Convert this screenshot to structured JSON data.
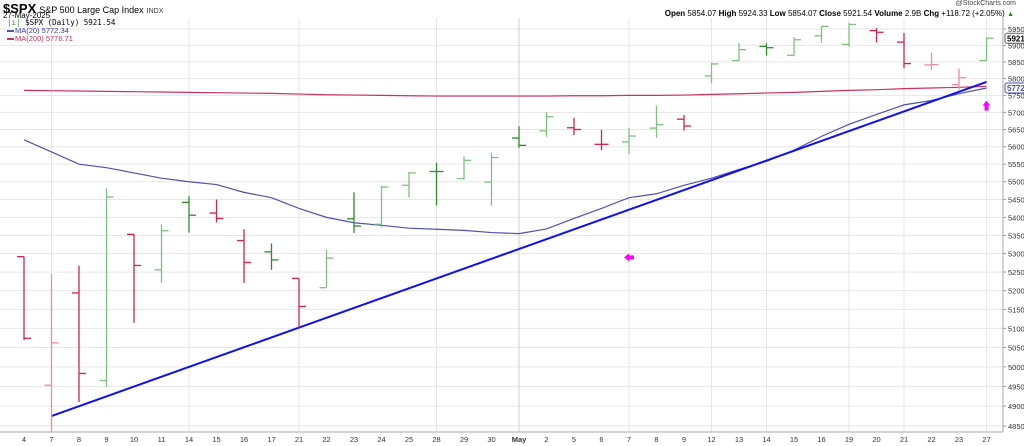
{
  "header": {
    "symbol": "$SPX",
    "name": "S&P 500 Large Cap Index",
    "exchange": "INDX",
    "date": "27-May-2025",
    "credit": "@StockCharts.com",
    "open_label": "Open",
    "open": "5854.07",
    "high_label": "High",
    "high": "5924.33",
    "low_label": "Low",
    "low": "5854.07",
    "close_label": "Close",
    "close": "5921.54",
    "volume_label": "Volume",
    "volume": "2.9B",
    "chg_label": "Chg",
    "chg": "+118.72 (+2.05%)",
    "chg_icon": "triangle-up-icon"
  },
  "legend": {
    "main": "$SPX (Daily) 5921.54",
    "ma20": "MA(20) 5772.34",
    "ma200": "MA(200) 5776.71"
  },
  "price_tags": {
    "last": "5921.54",
    "ma20": "5772.34"
  },
  "colors": {
    "up": "#2e8b2e",
    "up_light": "#7fbf7f",
    "down": "#d62050",
    "down_light": "#ee8aa6",
    "ma20": "#5050b0",
    "ma200": "#d03060",
    "trendline": "#1010ee",
    "arrow": "#ff00ff",
    "grid": "#e6e6e6"
  },
  "chart_data": {
    "type": "ohlc",
    "y_scale": "log",
    "ylim": [
      4850,
      5950
    ],
    "yticks": [
      4850,
      4900,
      4950,
      5000,
      5050,
      5100,
      5150,
      5200,
      5250,
      5300,
      5350,
      5400,
      5450,
      5500,
      5550,
      5600,
      5650,
      5700,
      5750,
      5800,
      5850,
      5900,
      5950
    ],
    "grid": true,
    "categories": [
      "4",
      "7",
      "8",
      "9",
      "10",
      "11",
      "14",
      "15",
      "16",
      "17",
      "21",
      "22",
      "23",
      "24",
      "25",
      "28",
      "29",
      "30",
      "May",
      "2",
      "5",
      "6",
      "7",
      "8",
      "9",
      "12",
      "13",
      "14",
      "15",
      "16",
      "19",
      "20",
      "21",
      "22",
      "23",
      "27"
    ],
    "ohlc": [
      [
        5292,
        5292,
        5069,
        5074
      ],
      [
        4953,
        5246,
        4835,
        5062
      ],
      [
        5194,
        5267,
        4910,
        4983
      ],
      [
        4965,
        5481,
        4948,
        5457
      ],
      [
        5353,
        5353,
        5115,
        5268
      ],
      [
        5256,
        5381,
        5221,
        5363
      ],
      [
        5442,
        5459,
        5358,
        5406
      ],
      [
        5412,
        5450,
        5386,
        5397
      ],
      [
        5336,
        5367,
        5221,
        5276
      ],
      [
        5305,
        5328,
        5256,
        5283
      ],
      [
        5233,
        5233,
        5102,
        5158
      ],
      [
        5208,
        5310,
        5208,
        5288
      ],
      [
        5396,
        5470,
        5357,
        5376
      ],
      [
        5381,
        5489,
        5372,
        5485
      ],
      [
        5490,
        5528,
        5456,
        5525
      ],
      [
        5529,
        5554,
        5433,
        5529
      ],
      [
        5509,
        5572,
        5506,
        5561
      ],
      [
        5499,
        5582,
        5433,
        5569
      ],
      [
        5625,
        5659,
        5597,
        5604
      ],
      [
        5646,
        5701,
        5629,
        5687
      ],
      [
        5655,
        5684,
        5634,
        5650
      ],
      [
        5607,
        5649,
        5590,
        5607
      ],
      [
        5614,
        5654,
        5579,
        5631
      ],
      [
        5654,
        5720,
        5626,
        5664
      ],
      [
        5680,
        5692,
        5647,
        5660
      ],
      [
        5808,
        5847,
        5786,
        5844
      ],
      [
        5854,
        5907,
        5853,
        5887
      ],
      [
        5897,
        5906,
        5869,
        5893
      ],
      [
        5870,
        5925,
        5867,
        5917
      ],
      [
        5929,
        5959,
        5908,
        5958
      ],
      [
        5903,
        5969,
        5896,
        5964
      ],
      [
        5945,
        5953,
        5909,
        5940
      ],
      [
        5910,
        5938,
        5831,
        5845
      ],
      [
        5841,
        5878,
        5826,
        5842
      ],
      [
        5782,
        5830,
        5767,
        5803
      ],
      [
        5854,
        5924,
        5854,
        5922
      ]
    ],
    "series": [
      {
        "name": "MA(20)",
        "values": [
          5620,
          5585,
          5550,
          5540,
          5525,
          5510,
          5500,
          5492,
          5470,
          5455,
          5425,
          5400,
          5385,
          5378,
          5370,
          5367,
          5364,
          5358,
          5355,
          5368,
          5397,
          5425,
          5455,
          5466,
          5490,
          5510,
          5535,
          5558,
          5590,
          5630,
          5665,
          5694,
          5722,
          5735,
          5755,
          5772
        ]
      },
      {
        "name": "MA(200)",
        "values": [
          5765,
          5764,
          5763,
          5762,
          5761,
          5760,
          5759,
          5758,
          5757,
          5756,
          5754,
          5752,
          5751,
          5750,
          5749,
          5748,
          5748,
          5748,
          5748,
          5748,
          5749,
          5749,
          5750,
          5750,
          5751,
          5753,
          5755,
          5757,
          5759,
          5762,
          5765,
          5767,
          5770,
          5772,
          5774,
          5777
        ]
      }
    ],
    "trendline": {
      "from": [
        "7",
        4875
      ],
      "to": [
        "27",
        5790
      ]
    },
    "annotations": [
      {
        "icon": "arrow-left-icon",
        "at": "7",
        "value": 5290
      },
      {
        "icon": "arrow-up-icon",
        "at": "27",
        "value": 5720
      }
    ]
  }
}
